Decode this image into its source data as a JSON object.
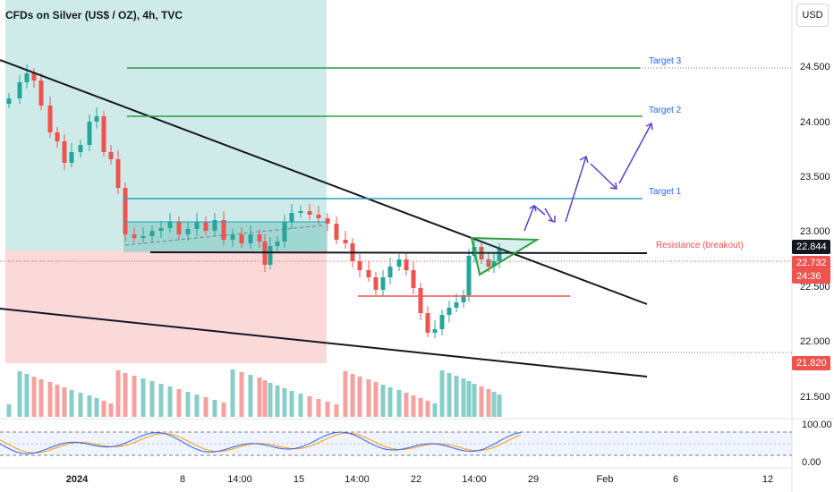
{
  "header": {
    "symbol_title": "CFDs on Silver (US$ / OZ), 4h, TVC",
    "currency_button": "USD"
  },
  "price_axis": {
    "labels": [
      "24.500",
      "24.000",
      "23.500",
      "23.000",
      "22.500",
      "22.000",
      "21.500"
    ]
  },
  "price_badges": {
    "resistance_level": "22.844",
    "last_price": "22.732",
    "countdown": "24:36",
    "support_level": "21.820"
  },
  "oscillator_axis": {
    "upper": "100.00",
    "lower": "0.00"
  },
  "time_axis": {
    "labels": [
      {
        "text": "2024",
        "bold": true
      },
      {
        "text": "8",
        "bold": false
      },
      {
        "text": "14:00",
        "bold": false
      },
      {
        "text": "15",
        "bold": false
      },
      {
        "text": "14:00",
        "bold": false
      },
      {
        "text": "22",
        "bold": false
      },
      {
        "text": "14:00",
        "bold": false
      },
      {
        "text": "29",
        "bold": false
      },
      {
        "text": "Feb",
        "bold": false
      },
      {
        "text": "6",
        "bold": false
      },
      {
        "text": "12",
        "bold": false
      }
    ]
  },
  "annotations": {
    "target3": "Target 3",
    "target2": "Target 2",
    "target1": "Target 1",
    "resistance": "Resistance (breakout)"
  },
  "colors": {
    "up": "#26a69a",
    "down": "#ef5350",
    "target_green": "#2e9e3e",
    "target_teal": "#26a0b8",
    "resistance_red": "#ef5350",
    "target_text": "#2962ff",
    "arrow_purple": "#5c3fd1",
    "stoch_k": "#2962ff",
    "stoch_d": "#ff9800"
  }
}
